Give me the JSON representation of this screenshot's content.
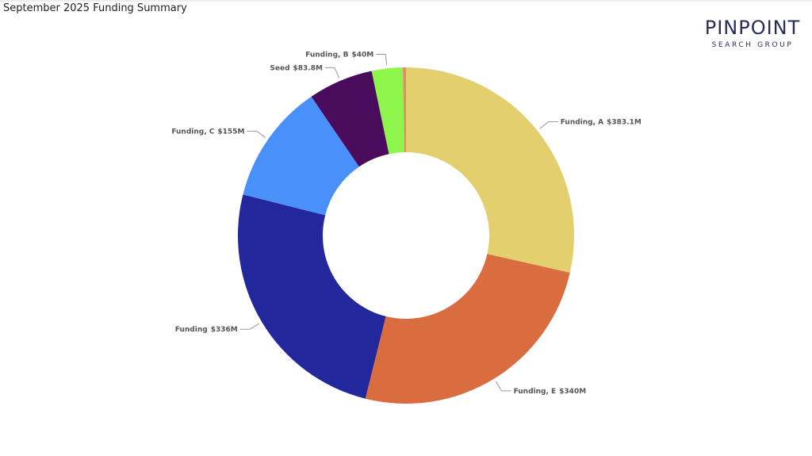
{
  "chart_data": {
    "type": "donut",
    "title": "September 2025 Funding Summary",
    "logo": {
      "name": "PINPOINT",
      "tagline": "SEARCH GROUP"
    },
    "categories": [
      "Funding, A",
      "Funding, E",
      "Funding",
      "Funding, C",
      "Seed",
      "Funding, B",
      null
    ],
    "values": [
      383.1,
      340,
      336,
      155,
      83.8,
      40,
      4
    ],
    "value_labels": [
      "$383.1M",
      "$340M",
      "$336M",
      "$155M",
      "$83.8M",
      "$40M",
      null
    ],
    "colors": [
      "#e3cf6e",
      "#d96d40",
      "#22289b",
      "#4a90fb",
      "#4a0b5c",
      "#8ef54a",
      "#e8896a"
    ]
  }
}
